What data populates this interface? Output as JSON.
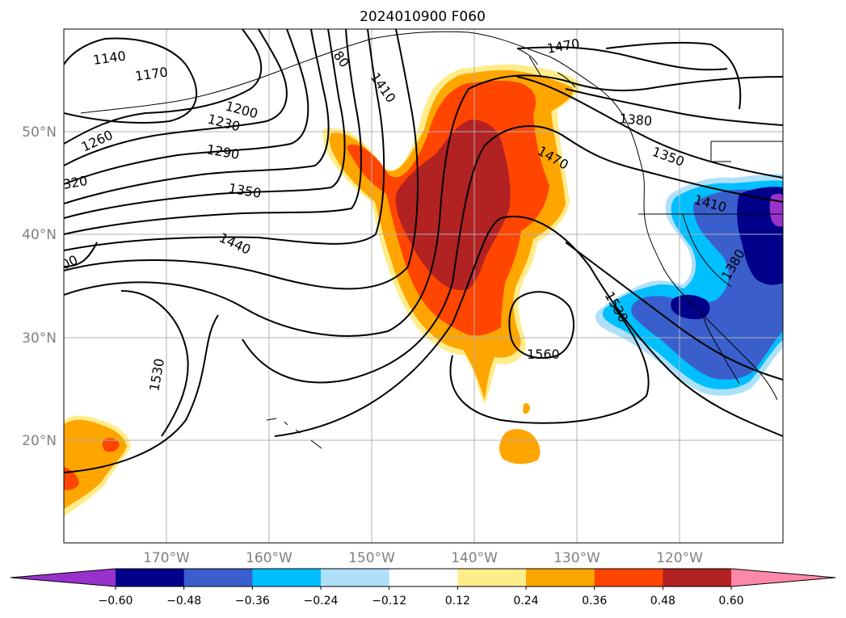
{
  "title": "2024010900 F060",
  "map": {
    "lat_labels": [
      "50°N",
      "40°N",
      "30°N",
      "20°N"
    ],
    "lon_labels": [
      "170°W",
      "160°W",
      "150°W",
      "140°W",
      "130°W",
      "120°W"
    ],
    "contour_labels": [
      "1140",
      "1170",
      "1200",
      "1230",
      "1260",
      "1290",
      "320",
      "1350",
      "1440",
      "00",
      "1530",
      "1410",
      "80",
      "1470",
      "1470",
      "1380",
      "1350",
      "1410",
      "1380",
      "1530",
      "1560"
    ]
  },
  "colorbar": {
    "ticks": [
      "−0.60",
      "−0.48",
      "−0.36",
      "−0.24",
      "−0.12",
      "0.12",
      "0.24",
      "0.36",
      "0.48",
      "0.60"
    ],
    "colors": [
      "#9932cc",
      "#00008b",
      "#3a5fcd",
      "#00bfff",
      "#afe0fa",
      "#ffffff",
      "#ffec8b",
      "#ffa500",
      "#ff4500",
      "#b22222",
      "#ff88aa"
    ]
  }
}
